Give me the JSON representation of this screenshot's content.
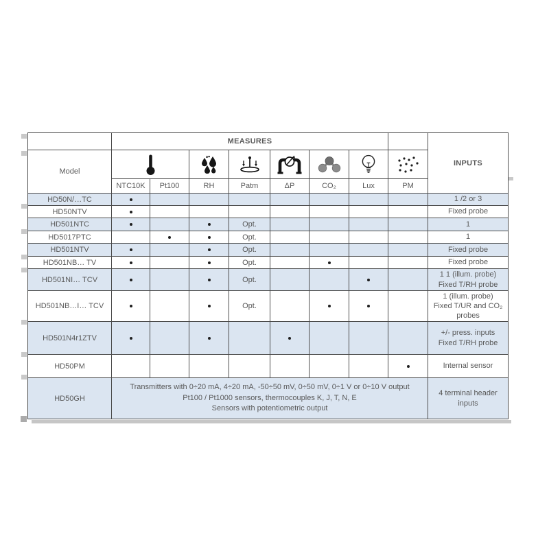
{
  "header": {
    "measures_label": "MEASURES",
    "inputs_label": "INPUTS",
    "model_label": "Model",
    "columns": [
      "NTC10K",
      "Pt100",
      "RH",
      "Patm",
      "ΔP",
      "CO₂",
      "Lux",
      "PM"
    ],
    "column_icons": [
      "thermometer-icon",
      "humidity-drops-icon",
      "barometric-pressure-icon",
      "differential-pressure-icon",
      "co2-molecule-icon",
      "lux-bulb-icon",
      "pm-particles-icon"
    ]
  },
  "table": {
    "rows": [
      {
        "model": "HD50N/…TC",
        "cells": [
          "dot",
          "",
          "",
          "",
          "",
          "",
          "",
          ""
        ],
        "inputs": "1 /2 or 3"
      },
      {
        "model": "HD50NTV",
        "cells": [
          "dot",
          "",
          "",
          "",
          "",
          "",
          "",
          ""
        ],
        "inputs": "Fixed probe"
      },
      {
        "model": "HD501NTC",
        "cells": [
          "dot",
          "",
          "dot",
          "Opt.",
          "",
          "",
          "",
          ""
        ],
        "inputs": "1"
      },
      {
        "model": "HD5017PTC",
        "cells": [
          "",
          "dot",
          "dot",
          "Opt.",
          "",
          "",
          "",
          ""
        ],
        "inputs": "1"
      },
      {
        "model": "HD501NTV",
        "cells": [
          "dot",
          "",
          "dot",
          "Opt.",
          "",
          "",
          "",
          ""
        ],
        "inputs": "Fixed probe"
      },
      {
        "model": "HD501NB… TV",
        "cells": [
          "dot",
          "",
          "dot",
          "Opt.",
          "",
          "dot",
          "",
          ""
        ],
        "inputs": "Fixed probe"
      },
      {
        "model": "HD501NI… TCV",
        "cells": [
          "dot",
          "",
          "dot",
          "Opt.",
          "",
          "",
          "dot",
          ""
        ],
        "inputs": "1 1 (illum. probe)\nFixed T/RH probe"
      },
      {
        "model": "HD501NB…I… TCV",
        "cells": [
          "dot",
          "",
          "dot",
          "Opt.",
          "",
          "dot",
          "dot",
          ""
        ],
        "inputs": "1 (illum. probe)\nFixed T/UR and CO₂\nprobes"
      },
      {
        "model": "HD501N4r1ZTV",
        "cells": [
          "dot",
          "",
          "dot",
          "",
          "dot",
          "",
          "",
          ""
        ],
        "inputs": "+/- press. inputs\nFixed T/RH probe"
      },
      {
        "model": "HD50PM",
        "cells": [
          "",
          "",
          "",
          "",
          "",
          "",
          "",
          "dot"
        ],
        "inputs": "Internal sensor"
      },
      {
        "model": "HD50GH",
        "description": "Transmitters with 0÷20 mA, 4÷20 mA, -50÷50 mV, 0÷50 mV, 0÷1 V or 0÷10 V output\nPt100 / Pt1000 sensors, thermocouples K, J, T, N, E\nSensors with potentiometric output",
        "inputs": "4 terminal header\ninputs"
      }
    ]
  },
  "colors": {
    "row_shade": "#dbe5f1",
    "border": "#4a4a4a",
    "text": "#595959",
    "header_text": "#2e2e2e",
    "co2_gray": "#8a8a8a",
    "shadow": "#c6c6c6"
  }
}
